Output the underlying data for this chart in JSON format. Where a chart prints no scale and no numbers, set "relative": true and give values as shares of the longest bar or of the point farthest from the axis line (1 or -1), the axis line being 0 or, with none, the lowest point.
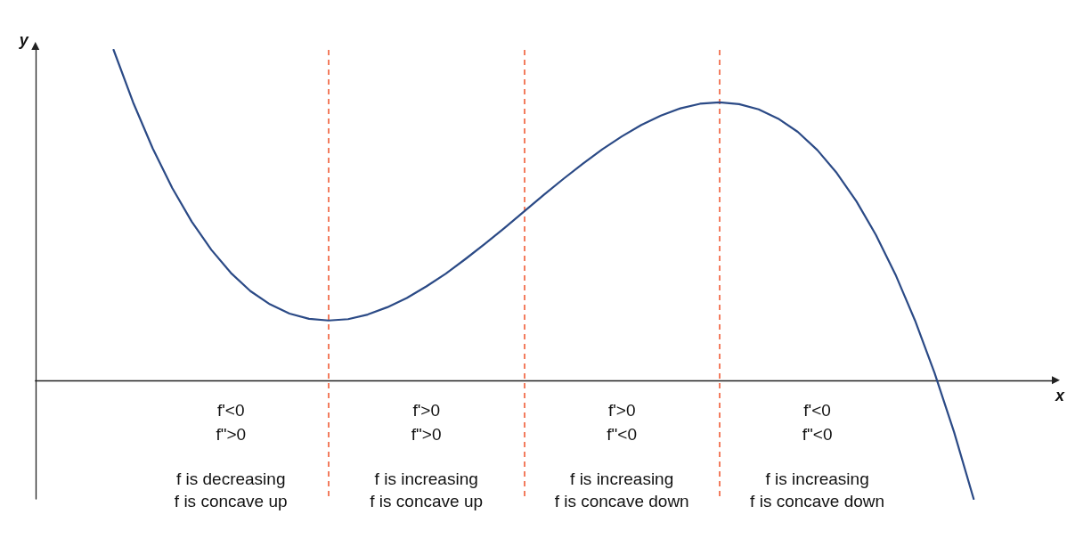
{
  "chart_data": {
    "type": "line",
    "relative": true,
    "xlabel": "x",
    "ylabel": "y",
    "categories": [
      null,
      null,
      null,
      null,
      null,
      null,
      null,
      null,
      null,
      null,
      null,
      null,
      null,
      null,
      null,
      null,
      null,
      null,
      null,
      null,
      null,
      null,
      null,
      null,
      null,
      null,
      null,
      null,
      null,
      null,
      null,
      null,
      null,
      null,
      null,
      null,
      null,
      null,
      null,
      null,
      null,
      null,
      null,
      null,
      null,
      null,
      null,
      null,
      null,
      null,
      null,
      null,
      null
    ],
    "series": [
      {
        "color": "#2b4a86",
        "values": [
          null,
          null,
          null,
          null,
          1.0,
          0.841,
          0.702,
          0.582,
          0.48,
          0.395,
          0.325,
          0.27,
          0.23,
          0.202,
          0.186,
          0.181,
          0.185,
          0.199,
          0.221,
          0.249,
          0.284,
          0.323,
          0.367,
          0.413,
          0.461,
          0.511,
          0.561,
          0.609,
          0.655,
          0.699,
          0.738,
          0.773,
          0.801,
          0.823,
          0.837,
          0.841,
          0.836,
          0.82,
          0.792,
          0.752,
          0.697,
          0.627,
          0.542,
          0.44,
          0.32,
          0.181,
          0.022,
          -0.157,
          -0.359,
          null,
          null,
          null,
          null
        ]
      }
    ],
    "annotations": [
      "f'<0",
      "f\">0",
      "f is decreasing",
      "f is concave up",
      "f'>0",
      "f\">0",
      "f is increasing",
      "f is concave up",
      "f'>0",
      "f\"<0",
      "f is increasing",
      "f is concave down",
      "f'<0",
      "f\"<0",
      "f is increasing",
      "f is concave down"
    ],
    "marker": "none",
    "line_style": "solid",
    "grid": "x"
  }
}
